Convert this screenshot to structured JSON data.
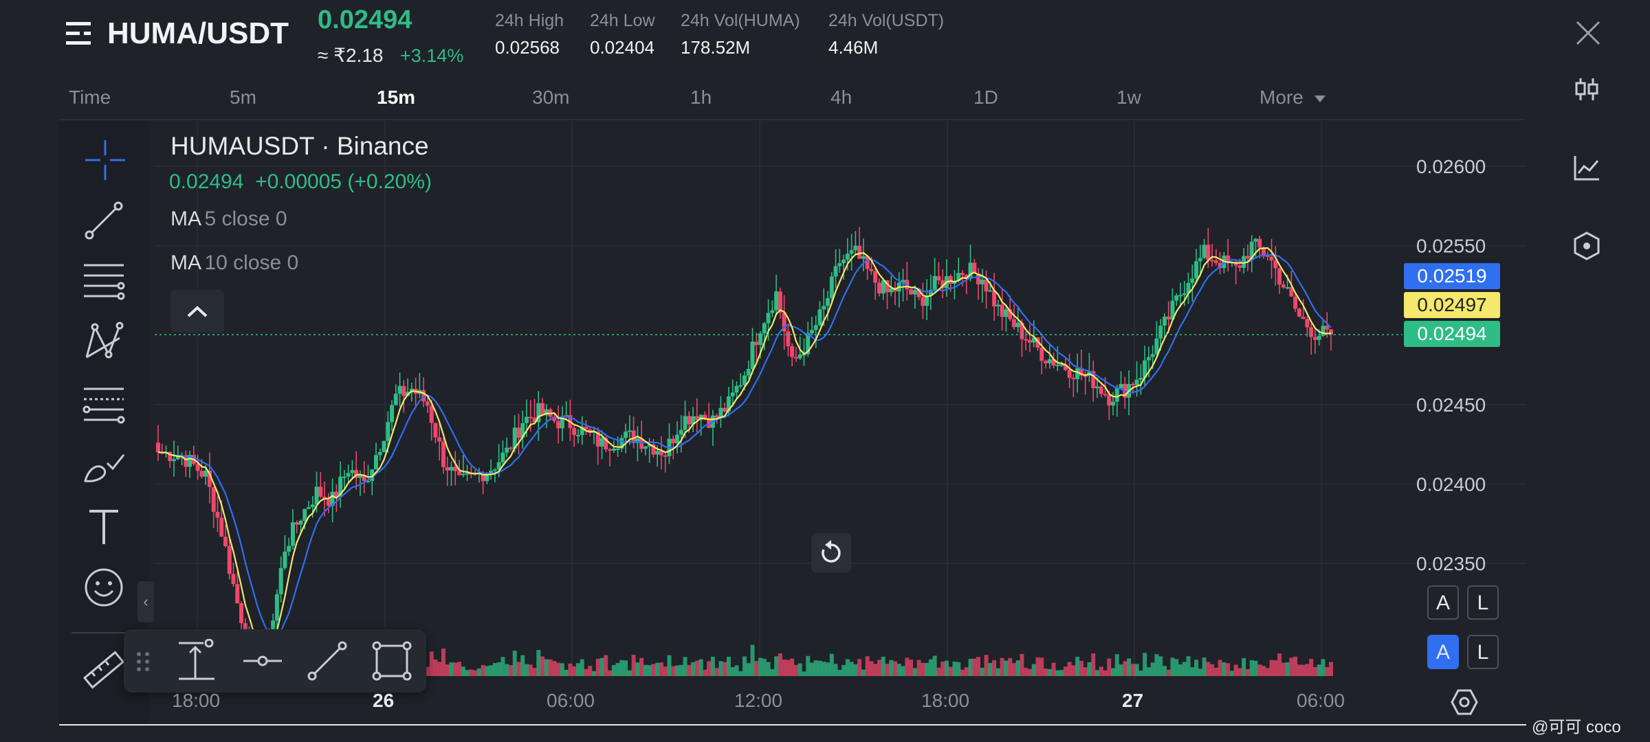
{
  "header": {
    "pair": "HUMA/USDT",
    "last_price": "0.02494",
    "inr_price": "≈ ₹2.18",
    "pct_change": "+3.14%",
    "stats": [
      {
        "label": "24h High",
        "value": "0.02568"
      },
      {
        "label": "24h Low",
        "value": "0.02404"
      },
      {
        "label": "24h Vol(HUMA)",
        "value": "178.52M"
      },
      {
        "label": "24h Vol(USDT)",
        "value": "4.46M"
      }
    ]
  },
  "timeframes": {
    "items": [
      "Time",
      "5m",
      "15m",
      "30m",
      "1h",
      "4h",
      "1D",
      "1w"
    ],
    "active": "15m",
    "more_label": "More"
  },
  "legend": {
    "symbol": "HUMAUSDT · Binance",
    "ohlc": "0.02494  +0.00005 (+0.20%)",
    "ma": [
      {
        "label": "MA",
        "params": "5 close 0"
      },
      {
        "label": "MA",
        "params": "10 close 0"
      }
    ]
  },
  "price_tags": {
    "ma10": "0.02519",
    "ma5": "0.02497",
    "last": "0.02494"
  },
  "buttons": {
    "auto": "A",
    "log": "L"
  },
  "watermark": "@可可 coco",
  "colors": {
    "up": "#2ebd85",
    "down": "#f0476b",
    "ma5": "#f5e86a",
    "ma10": "#2f6ff0",
    "background": "#1f2229"
  },
  "icons": {
    "left_toolbar": [
      "crosshair-icon",
      "trend-line-icon",
      "horizontal-lines-icon",
      "pattern-icon",
      "fib-icon",
      "brush-icon",
      "text-icon",
      "emoji-icon",
      "ruler-icon"
    ],
    "right_side": [
      "candlestick-icon",
      "line-chart-icon",
      "indicator-icon",
      "settings-icon"
    ],
    "draw_toolbar": [
      "drag-handle-icon",
      "price-range-icon",
      "horizontal-ray-icon",
      "line-segment-icon",
      "rectangle-icon"
    ]
  },
  "chart_data": {
    "type": "candlestick",
    "title": "HUMAUSDT · Binance",
    "interval": "15m",
    "y_ticks": [
      0.026,
      0.0255,
      0.0245,
      0.024,
      0.0235
    ],
    "y_tick_labels": [
      "0.02600",
      "0.02550",
      "0.02450",
      "0.02400",
      "0.02350"
    ],
    "ylim": [
      0.0229,
      0.0262
    ],
    "x_tick_labels": [
      "18:00",
      "26",
      "06:00",
      "12:00",
      "18:00",
      "27",
      "06:00"
    ],
    "last_price": 0.02494,
    "ma5_last": 0.02497,
    "ma10_last": 0.02519,
    "anchor_close_points": [
      [
        0,
        0.0242
      ],
      [
        6,
        0.02418
      ],
      [
        12,
        0.02405
      ],
      [
        16,
        0.0237
      ],
      [
        20,
        0.02325
      ],
      [
        24,
        0.0229
      ],
      [
        28,
        0.023
      ],
      [
        32,
        0.0236
      ],
      [
        36,
        0.0238
      ],
      [
        40,
        0.02395
      ],
      [
        44,
        0.0239
      ],
      [
        48,
        0.0241
      ],
      [
        52,
        0.024
      ],
      [
        56,
        0.02425
      ],
      [
        60,
        0.02455
      ],
      [
        64,
        0.0246
      ],
      [
        68,
        0.0245
      ],
      [
        72,
        0.02415
      ],
      [
        76,
        0.024
      ],
      [
        80,
        0.02405
      ],
      [
        84,
        0.0241
      ],
      [
        88,
        0.0242
      ],
      [
        92,
        0.0244
      ],
      [
        96,
        0.02445
      ],
      [
        100,
        0.0244
      ],
      [
        104,
        0.02438
      ],
      [
        108,
        0.02432
      ],
      [
        112,
        0.02425
      ],
      [
        116,
        0.02428
      ],
      [
        120,
        0.0243
      ],
      [
        124,
        0.02425
      ],
      [
        128,
        0.0242
      ],
      [
        132,
        0.0244
      ],
      [
        136,
        0.02445
      ],
      [
        140,
        0.0244
      ],
      [
        144,
        0.0245
      ],
      [
        148,
        0.0247
      ],
      [
        152,
        0.025
      ],
      [
        156,
        0.0252
      ],
      [
        160,
        0.02475
      ],
      [
        164,
        0.0249
      ],
      [
        168,
        0.0251
      ],
      [
        172,
        0.0254
      ],
      [
        176,
        0.02545
      ],
      [
        180,
        0.0253
      ],
      [
        184,
        0.0252
      ],
      [
        188,
        0.02525
      ],
      [
        192,
        0.02515
      ],
      [
        196,
        0.02525
      ],
      [
        200,
        0.0253
      ],
      [
        204,
        0.02535
      ],
      [
        208,
        0.0253
      ],
      [
        212,
        0.0251
      ],
      [
        216,
        0.025
      ],
      [
        220,
        0.0249
      ],
      [
        224,
        0.0248
      ],
      [
        228,
        0.02475
      ],
      [
        232,
        0.0247
      ],
      [
        236,
        0.02465
      ],
      [
        240,
        0.02455
      ],
      [
        244,
        0.0246
      ],
      [
        248,
        0.0247
      ],
      [
        252,
        0.0249
      ],
      [
        256,
        0.0251
      ],
      [
        260,
        0.0253
      ],
      [
        264,
        0.02545
      ],
      [
        268,
        0.0254
      ],
      [
        272,
        0.02535
      ],
      [
        276,
        0.0255
      ],
      [
        280,
        0.02545
      ],
      [
        284,
        0.02525
      ],
      [
        288,
        0.02505
      ],
      [
        292,
        0.02495
      ],
      [
        296,
        0.02494
      ]
    ]
  }
}
